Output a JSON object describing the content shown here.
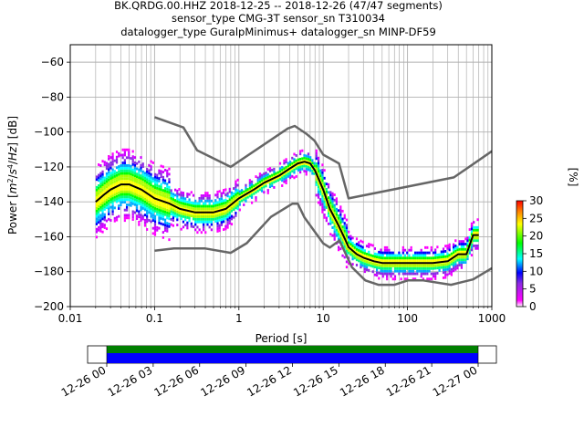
{
  "title_lines": [
    "BK.QRDG.00.HHZ   2018-12-25 -- 2018-12-26  (47/47 segments)",
    "sensor_type CMG-3T sensor_sn T310034",
    "datalogger_type GuralpMinimus+ datalogger_sn MINP-DF59"
  ],
  "colorbar": {
    "label": "[%]",
    "ticks": [
      "0",
      "5",
      "10",
      "15",
      "20",
      "25",
      "30"
    ],
    "tick_values": [
      0,
      5,
      10,
      15,
      20,
      25,
      30
    ],
    "range": [
      0,
      30
    ]
  },
  "timeline": {
    "ticks": [
      "12-26 00",
      "12-26 03",
      "12-26 06",
      "12-26 09",
      "12-26 12",
      "12-26 15",
      "12-26 18",
      "12-26 21",
      "12-27 00"
    ],
    "colors": {
      "top": "#008000",
      "bottom": "#0000ff"
    }
  },
  "colors": {
    "median": "#000000",
    "noise_model": "#666666",
    "grid": "#b0b0b0"
  },
  "chart_data": {
    "type": "heatmap",
    "title": "BK.QRDG.00.HHZ   2018-12-25 -- 2018-12-26  (47/47 segments)",
    "xlabel": "Period [s]",
    "ylabel": "Power [m²/s⁴/Hz] [dB]",
    "xscale": "log",
    "xlim": [
      0.01,
      1000
    ],
    "ylim": [
      -200,
      -50
    ],
    "xticks": [
      0.01,
      0.1,
      1,
      10,
      100,
      1000
    ],
    "xtick_labels": [
      "0.01",
      "0.1",
      "1",
      "10",
      "100",
      "1000"
    ],
    "yticks": [
      -200,
      -180,
      -160,
      -140,
      -120,
      -100,
      -80,
      -60
    ],
    "ytick_labels": [
      "−200",
      "−180",
      "−160",
      "−140",
      "−120",
      "−100",
      "−80",
      "−60"
    ],
    "grid": true,
    "series": [
      {
        "kind": "median",
        "x": [
          0.02,
          0.025,
          0.03,
          0.04,
          0.05,
          0.07,
          0.1,
          0.15,
          0.2,
          0.3,
          0.5,
          0.7,
          1,
          1.5,
          2,
          3,
          4,
          5,
          6,
          7,
          8,
          10,
          12,
          15,
          18,
          20,
          25,
          30,
          40,
          50,
          70,
          100,
          150,
          200,
          300,
          400,
          500,
          600,
          700
        ],
        "y": [
          -140,
          -136,
          -133,
          -130,
          -130,
          -133,
          -138,
          -141,
          -144,
          -146,
          -146,
          -144,
          -138,
          -133,
          -129,
          -125,
          -121,
          -118,
          -117,
          -118,
          -122,
          -133,
          -144,
          -153,
          -161,
          -166,
          -170,
          -172,
          -174,
          -175,
          -175,
          -175,
          -175,
          -175,
          -174,
          -170,
          -170,
          -159,
          -159
        ]
      },
      {
        "kind": "new_high_noise_model",
        "x": [
          0.1,
          0.22,
          0.32,
          0.8,
          3.8,
          4.6,
          6.3,
          7.9,
          10,
          15.4,
          20,
          354.8,
          1000
        ],
        "y": [
          -91.5,
          -97.4,
          -110.5,
          -120,
          -98,
          -96.5,
          -101,
          -105,
          -113,
          -118,
          -138,
          -126,
          -111
        ]
      },
      {
        "kind": "new_low_noise_model",
        "x": [
          0.1,
          0.17,
          0.4,
          0.8,
          1.24,
          2.4,
          4.3,
          5.0,
          6.0,
          10,
          12,
          15.6,
          21.9,
          31.6,
          45,
          70,
          101,
          154,
          328,
          600,
          1000
        ],
        "y": [
          -168,
          -166.7,
          -166.7,
          -169.2,
          -163.7,
          -148.6,
          -141.1,
          -141.1,
          -149,
          -163.8,
          -166.2,
          -162.1,
          -177.5,
          -185,
          -187.5,
          -187.5,
          -185,
          -185,
          -187.5,
          -184.4,
          -178
        ]
      }
    ]
  }
}
